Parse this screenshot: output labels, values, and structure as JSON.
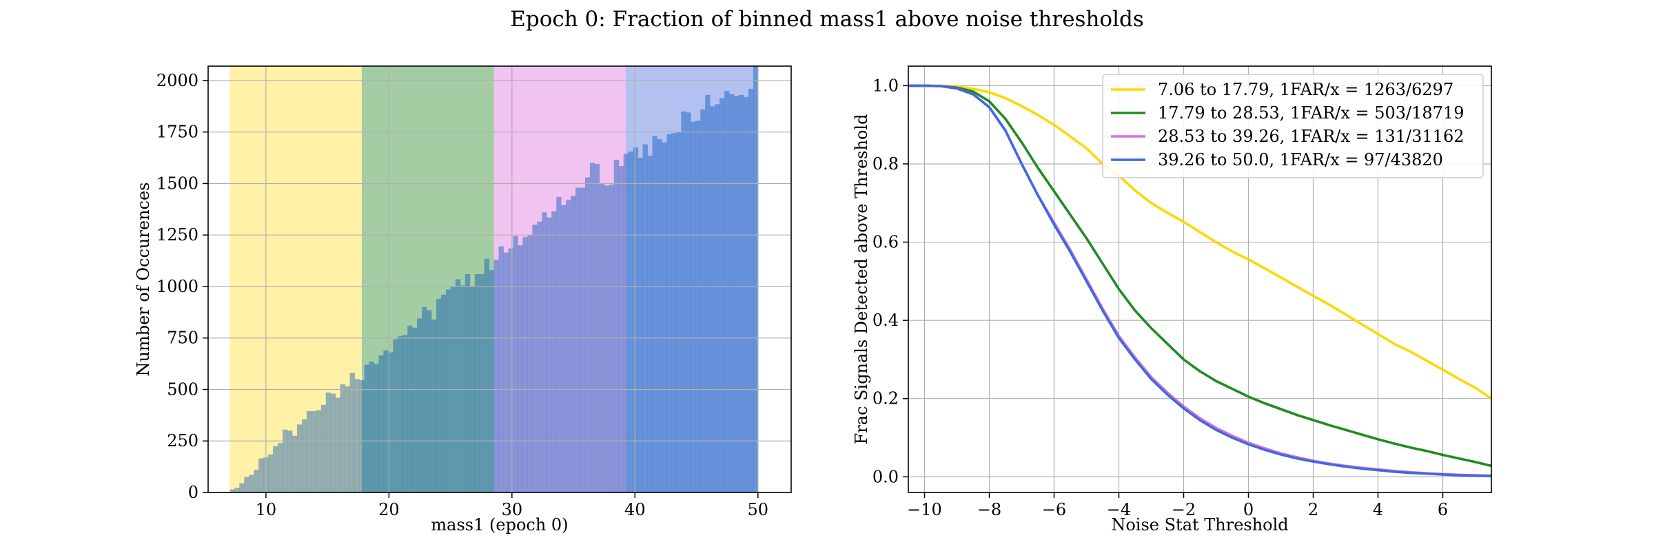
{
  "figure_title": "Epoch 0: Fraction of binned mass1 above noise thresholds",
  "chart_data": [
    {
      "type": "bar",
      "subtype": "histogram",
      "title": "",
      "xlabel": "mass1 (epoch 0)",
      "ylabel": "Number of Occurences",
      "xlim": [
        5.3,
        52.7
      ],
      "ylim": [
        0,
        2070
      ],
      "xticks": [
        10,
        20,
        30,
        40,
        50
      ],
      "yticks": [
        0,
        250,
        500,
        750,
        1000,
        1250,
        1500,
        1750,
        2000
      ],
      "grid": true,
      "bar_color": "#4a84cc",
      "bin_range": [
        7.06,
        50.0
      ],
      "counts": [
        15,
        22,
        45,
        75,
        85,
        110,
        165,
        170,
        185,
        225,
        240,
        305,
        300,
        275,
        330,
        355,
        395,
        395,
        400,
        425,
        485,
        480,
        460,
        525,
        515,
        580,
        550,
        545,
        620,
        635,
        625,
        665,
        690,
        680,
        745,
        760,
        765,
        810,
        800,
        845,
        900,
        885,
        840,
        940,
        960,
        985,
        1000,
        1035,
        1005,
        1060,
        1000,
        1060,
        1060,
        1135,
        1080,
        1130,
        1195,
        1165,
        1185,
        1245,
        1200,
        1240,
        1250,
        1300,
        1315,
        1360,
        1335,
        1365,
        1435,
        1395,
        1420,
        1440,
        1480,
        1480,
        1530,
        1600,
        1595,
        1500,
        1490,
        1495,
        1615,
        1585,
        1645,
        1655,
        1675,
        1625,
        1690,
        1635,
        1730,
        1715,
        1700,
        1740,
        1745,
        1750,
        1850,
        1845,
        1800,
        1805,
        1860,
        1930,
        1875,
        1885,
        1915,
        1950,
        1935,
        1925,
        1930,
        1920,
        1960,
        2070
      ],
      "bands": [
        {
          "from": 7.06,
          "to": 17.79,
          "color": "#ffe034"
        },
        {
          "from": 17.79,
          "to": 28.53,
          "color": "#2a8c2a"
        },
        {
          "from": 28.53,
          "to": 39.26,
          "color": "#dc73dc"
        },
        {
          "from": 39.26,
          "to": 50.0,
          "color": "#4e6fe0"
        }
      ]
    },
    {
      "type": "line",
      "title": "",
      "xlabel": "Noise Stat Threshold",
      "ylabel": "Frac Signals Detected above Threshold",
      "xlim": [
        -10.5,
        7.5
      ],
      "ylim": [
        -0.04,
        1.05
      ],
      "xticks": [
        -10,
        -8,
        -6,
        -4,
        -2,
        0,
        2,
        4,
        6
      ],
      "xtick_labels": [
        "−10",
        "−8",
        "−6",
        "−4",
        "−2",
        "0",
        "2",
        "4",
        "6"
      ],
      "yticks": [
        0.0,
        0.2,
        0.4,
        0.6,
        0.8,
        1.0
      ],
      "ytick_labels": [
        "0.0",
        "0.2",
        "0.4",
        "0.6",
        "0.8",
        "1.0"
      ],
      "grid": true,
      "legend_position": "top-right",
      "x": [
        -10.5,
        -10,
        -9.5,
        -9,
        -8.5,
        -8,
        -7.5,
        -7,
        -6.5,
        -6,
        -5.5,
        -5,
        -4.5,
        -4,
        -3.5,
        -3,
        -2.5,
        -2,
        -1.5,
        -1,
        -0.5,
        0,
        0.5,
        1,
        1.5,
        2,
        2.5,
        3,
        3.5,
        4,
        4.5,
        5,
        5.5,
        6,
        6.5,
        7,
        7.5
      ],
      "series": [
        {
          "name": "7.06 to 17.79, 1FAR/x = 1263/6297",
          "color": "#ffd700",
          "values": [
            1.0,
            1.0,
            1.0,
            0.998,
            0.992,
            0.983,
            0.968,
            0.948,
            0.925,
            0.9,
            0.87,
            0.84,
            0.8,
            0.77,
            0.732,
            0.7,
            0.675,
            0.652,
            0.626,
            0.6,
            0.576,
            0.556,
            0.533,
            0.51,
            0.486,
            0.463,
            0.44,
            0.415,
            0.39,
            0.365,
            0.34,
            0.32,
            0.297,
            0.274,
            0.25,
            0.228,
            0.2
          ]
        },
        {
          "name": "17.79 to 28.53, 1FAR/x = 503/18719",
          "color": "#228b22",
          "values": [
            1.0,
            1.0,
            0.999,
            0.995,
            0.985,
            0.96,
            0.915,
            0.855,
            0.79,
            0.73,
            0.67,
            0.61,
            0.545,
            0.48,
            0.425,
            0.38,
            0.34,
            0.3,
            0.27,
            0.245,
            0.225,
            0.205,
            0.188,
            0.173,
            0.158,
            0.145,
            0.132,
            0.12,
            0.108,
            0.096,
            0.085,
            0.075,
            0.066,
            0.056,
            0.047,
            0.038,
            0.028
          ]
        },
        {
          "name": "28.53 to 39.26, 1FAR/x = 131/31162",
          "color": "#da70d6",
          "values": [
            1.0,
            1.0,
            0.999,
            0.993,
            0.978,
            0.945,
            0.885,
            0.8,
            0.72,
            0.65,
            0.58,
            0.505,
            0.43,
            0.36,
            0.305,
            0.255,
            0.215,
            0.18,
            0.15,
            0.125,
            0.105,
            0.087,
            0.073,
            0.06,
            0.05,
            0.041,
            0.034,
            0.028,
            0.023,
            0.019,
            0.015,
            0.012,
            0.009,
            0.007,
            0.005,
            0.004,
            0.003
          ]
        },
        {
          "name": "39.26 to 50.0, 1FAR/x = 97/43820",
          "color": "#4169e1",
          "values": [
            1.0,
            1.0,
            0.999,
            0.993,
            0.978,
            0.945,
            0.885,
            0.8,
            0.72,
            0.645,
            0.575,
            0.5,
            0.425,
            0.355,
            0.3,
            0.25,
            0.21,
            0.175,
            0.145,
            0.12,
            0.1,
            0.083,
            0.069,
            0.057,
            0.047,
            0.039,
            0.032,
            0.026,
            0.021,
            0.017,
            0.013,
            0.01,
            0.008,
            0.006,
            0.004,
            0.003,
            0.002
          ]
        }
      ]
    }
  ]
}
